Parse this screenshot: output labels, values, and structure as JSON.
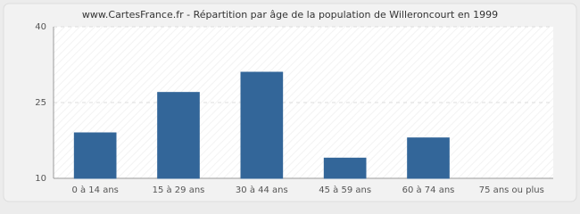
{
  "chart_data": {
    "type": "bar",
    "title": "www.CartesFrance.fr - Répartition par âge de la population de Willeroncourt en 1999",
    "categories": [
      "0 à 14 ans",
      "15 à 29 ans",
      "30 à 44 ans",
      "45 à 59 ans",
      "60 à 74 ans",
      "75 ans ou plus"
    ],
    "values": [
      19,
      27,
      31,
      14,
      18,
      10
    ],
    "color": "#336699",
    "ylim": [
      10,
      40
    ],
    "yticks": [
      10,
      25,
      40
    ],
    "grid": true
  }
}
